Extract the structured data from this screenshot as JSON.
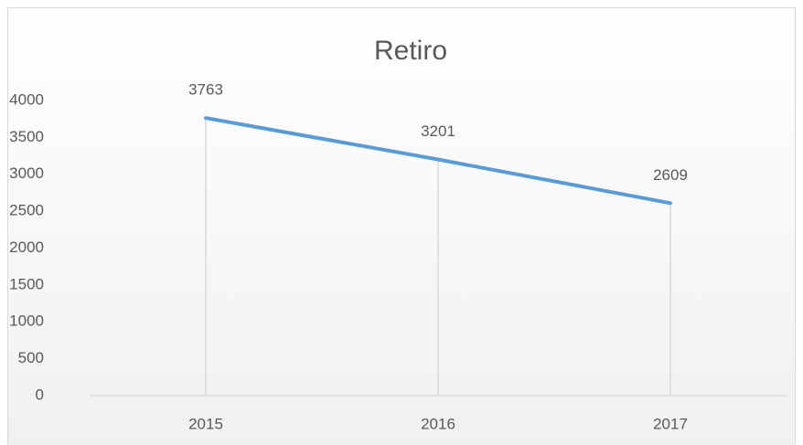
{
  "chart_data": {
    "type": "line",
    "title": "Retiro",
    "categories": [
      "2015",
      "2016",
      "2017"
    ],
    "series": [
      {
        "name": "Retiro",
        "color": "#5b9bd5",
        "values": [
          3763,
          3201,
          2609
        ]
      }
    ],
    "ylim": [
      0,
      4000
    ],
    "yticks": [
      0,
      500,
      1000,
      1500,
      2000,
      2500,
      3000,
      3500,
      4000
    ],
    "data_labels": true,
    "drop_lines": true
  }
}
